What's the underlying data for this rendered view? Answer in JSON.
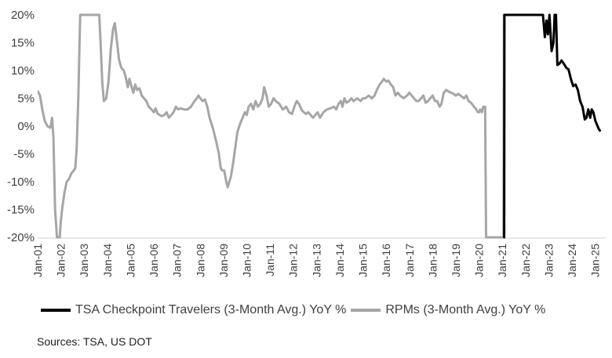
{
  "chart_data": {
    "type": "line",
    "title": "",
    "xlabel": "",
    "ylabel": "",
    "ylim": [
      -20,
      20
    ],
    "yticks": [
      -20,
      -15,
      -10,
      -5,
      0,
      5,
      10,
      15,
      20
    ],
    "ytick_labels": [
      "-20%",
      "-15%",
      "-10%",
      "-5%",
      "0%",
      "5%",
      "10%",
      "15%",
      "20%"
    ],
    "xlim": [
      2001.0,
      2025.45
    ],
    "xticks": [
      2001,
      2002,
      2003,
      2004,
      2005,
      2006,
      2007,
      2008,
      2009,
      2010,
      2011,
      2012,
      2013,
      2014,
      2015,
      2016,
      2017,
      2018,
      2019,
      2020,
      2021,
      2022,
      2023,
      2024,
      2025
    ],
    "xtick_labels": [
      "Jan-01",
      "Jan-02",
      "Jan-03",
      "Jan-04",
      "Jan-05",
      "Jan-06",
      "Jan-07",
      "Jan-08",
      "Jan-09",
      "Jan-10",
      "Jan-11",
      "Jan-12",
      "Jan-13",
      "Jan-14",
      "Jan-15",
      "Jan-16",
      "Jan-17",
      "Jan-18",
      "Jan-19",
      "Jan-20",
      "Jan-21",
      "Jan-22",
      "Jan-23",
      "Jan-24",
      "Jan-25"
    ],
    "grid": false,
    "legend_position": "bottom",
    "series": [
      {
        "name": "TSA Checkpoint Travelers (3-Month Avg.) YoY %",
        "color": "#000000",
        "points": [
          [
            2021.08,
            -20
          ],
          [
            2021.09,
            20
          ],
          [
            2022.75,
            20
          ],
          [
            2022.83,
            16
          ],
          [
            2022.9,
            19
          ],
          [
            2022.96,
            16.5
          ],
          [
            2023.03,
            20
          ],
          [
            2023.12,
            13.5
          ],
          [
            2023.2,
            15
          ],
          [
            2023.25,
            20
          ],
          [
            2023.31,
            20
          ],
          [
            2023.37,
            11
          ],
          [
            2023.45,
            11.2
          ],
          [
            2023.55,
            11.8
          ],
          [
            2023.65,
            11.2
          ],
          [
            2023.75,
            10.5
          ],
          [
            2023.85,
            10.2
          ],
          [
            2023.95,
            8.5
          ],
          [
            2024.05,
            7.2
          ],
          [
            2024.15,
            7.5
          ],
          [
            2024.25,
            6.5
          ],
          [
            2024.35,
            4.5
          ],
          [
            2024.45,
            3.5
          ],
          [
            2024.55,
            1.2
          ],
          [
            2024.62,
            1.5
          ],
          [
            2024.7,
            3
          ],
          [
            2024.78,
            1.5
          ],
          [
            2024.85,
            3
          ],
          [
            2024.92,
            2.5
          ],
          [
            2025.0,
            1
          ],
          [
            2025.08,
            0.2
          ],
          [
            2025.15,
            -0.5
          ],
          [
            2025.2,
            -0.8
          ]
        ]
      },
      {
        "name": "RPMs (3-Month Avg.) YoY %",
        "color": "#a6a6a6",
        "points": [
          [
            2001.0,
            6.3
          ],
          [
            2001.1,
            5.5
          ],
          [
            2001.2,
            3
          ],
          [
            2001.3,
            1
          ],
          [
            2001.42,
            0
          ],
          [
            2001.55,
            -0.3
          ],
          [
            2001.62,
            1.5
          ],
          [
            2001.68,
            -2
          ],
          [
            2001.75,
            -15
          ],
          [
            2001.83,
            -20
          ],
          [
            2001.95,
            -20
          ],
          [
            2002.0,
            -17
          ],
          [
            2002.05,
            -15
          ],
          [
            2002.15,
            -12
          ],
          [
            2002.25,
            -10
          ],
          [
            2002.35,
            -9.5
          ],
          [
            2002.45,
            -8.5
          ],
          [
            2002.55,
            -8
          ],
          [
            2002.62,
            -7.5
          ],
          [
            2002.68,
            -4
          ],
          [
            2002.75,
            5
          ],
          [
            2002.83,
            20
          ],
          [
            2003.65,
            20
          ],
          [
            2003.72,
            14
          ],
          [
            2003.78,
            8
          ],
          [
            2003.85,
            4.5
          ],
          [
            2003.95,
            5
          ],
          [
            2004.05,
            8
          ],
          [
            2004.15,
            14
          ],
          [
            2004.25,
            17.5
          ],
          [
            2004.32,
            18.5
          ],
          [
            2004.42,
            15
          ],
          [
            2004.5,
            12
          ],
          [
            2004.6,
            10.5
          ],
          [
            2004.7,
            10
          ],
          [
            2004.78,
            9
          ],
          [
            2004.88,
            7
          ],
          [
            2004.95,
            8.5
          ],
          [
            2005.05,
            7
          ],
          [
            2005.12,
            6
          ],
          [
            2005.2,
            7.5
          ],
          [
            2005.28,
            6.5
          ],
          [
            2005.38,
            6.8
          ],
          [
            2005.48,
            5.5
          ],
          [
            2005.58,
            5
          ],
          [
            2005.68,
            4.5
          ],
          [
            2005.78,
            3.5
          ],
          [
            2005.9,
            3
          ],
          [
            2006.0,
            2.5
          ],
          [
            2006.08,
            3.2
          ],
          [
            2006.15,
            2.3
          ],
          [
            2006.25,
            2
          ],
          [
            2006.35,
            1.8
          ],
          [
            2006.45,
            2
          ],
          [
            2006.55,
            2.5
          ],
          [
            2006.65,
            1.5
          ],
          [
            2006.75,
            2
          ],
          [
            2006.85,
            2.5
          ],
          [
            2006.95,
            3.5
          ],
          [
            2007.05,
            3
          ],
          [
            2007.15,
            3.2
          ],
          [
            2007.3,
            3
          ],
          [
            2007.45,
            3
          ],
          [
            2007.6,
            3.5
          ],
          [
            2007.75,
            4.5
          ],
          [
            2007.85,
            5
          ],
          [
            2007.92,
            5.5
          ],
          [
            2008.0,
            5
          ],
          [
            2008.1,
            4.5
          ],
          [
            2008.2,
            4.8
          ],
          [
            2008.3,
            3.5
          ],
          [
            2008.4,
            1.5
          ],
          [
            2008.55,
            -0.5
          ],
          [
            2008.7,
            -3
          ],
          [
            2008.8,
            -5
          ],
          [
            2008.88,
            -7.5
          ],
          [
            2008.95,
            -8
          ],
          [
            2009.03,
            -8
          ],
          [
            2009.12,
            -10
          ],
          [
            2009.18,
            -11
          ],
          [
            2009.25,
            -10
          ],
          [
            2009.32,
            -9
          ],
          [
            2009.42,
            -6.5
          ],
          [
            2009.5,
            -4
          ],
          [
            2009.6,
            -1
          ],
          [
            2009.72,
            0.5
          ],
          [
            2009.82,
            1.5
          ],
          [
            2009.92,
            2.5
          ],
          [
            2010.0,
            2
          ],
          [
            2010.08,
            3.5
          ],
          [
            2010.18,
            4
          ],
          [
            2010.28,
            3
          ],
          [
            2010.38,
            4.5
          ],
          [
            2010.48,
            3.5
          ],
          [
            2010.58,
            4
          ],
          [
            2010.68,
            5
          ],
          [
            2010.75,
            7
          ],
          [
            2010.85,
            5.5
          ],
          [
            2010.95,
            3.5
          ],
          [
            2011.05,
            4
          ],
          [
            2011.15,
            5
          ],
          [
            2011.25,
            4.5
          ],
          [
            2011.4,
            4
          ],
          [
            2011.55,
            3
          ],
          [
            2011.7,
            3.5
          ],
          [
            2011.82,
            2.5
          ],
          [
            2011.95,
            2.2
          ],
          [
            2012.05,
            3.5
          ],
          [
            2012.15,
            4.5
          ],
          [
            2012.25,
            4
          ],
          [
            2012.35,
            3
          ],
          [
            2012.45,
            2.5
          ],
          [
            2012.55,
            2.2
          ],
          [
            2012.65,
            2.5
          ],
          [
            2012.75,
            2
          ],
          [
            2012.85,
            1.5
          ],
          [
            2012.95,
            2
          ],
          [
            2013.05,
            2.5
          ],
          [
            2013.15,
            1.5
          ],
          [
            2013.3,
            2.5
          ],
          [
            2013.45,
            3
          ],
          [
            2013.6,
            3.2
          ],
          [
            2013.75,
            3.5
          ],
          [
            2013.85,
            3
          ],
          [
            2013.95,
            4
          ],
          [
            2014.05,
            4.5
          ],
          [
            2014.12,
            3.5
          ],
          [
            2014.2,
            5
          ],
          [
            2014.3,
            4.2
          ],
          [
            2014.4,
            4.5
          ],
          [
            2014.5,
            5
          ],
          [
            2014.6,
            4.5
          ],
          [
            2014.75,
            5
          ],
          [
            2014.9,
            4.5
          ],
          [
            2015.0,
            5
          ],
          [
            2015.1,
            5
          ],
          [
            2015.25,
            5.5
          ],
          [
            2015.38,
            5
          ],
          [
            2015.5,
            5.5
          ],
          [
            2015.6,
            6.5
          ],
          [
            2015.72,
            7.5
          ],
          [
            2015.82,
            8
          ],
          [
            2015.9,
            8.5
          ],
          [
            2016.0,
            8
          ],
          [
            2016.1,
            8.2
          ],
          [
            2016.2,
            7.5
          ],
          [
            2016.3,
            7
          ],
          [
            2016.4,
            5.5
          ],
          [
            2016.5,
            6
          ],
          [
            2016.6,
            5.5
          ],
          [
            2016.75,
            5
          ],
          [
            2016.9,
            5.5
          ],
          [
            2017.0,
            6
          ],
          [
            2017.1,
            5.5
          ],
          [
            2017.2,
            5
          ],
          [
            2017.3,
            4.5
          ],
          [
            2017.4,
            4.5
          ],
          [
            2017.5,
            5
          ],
          [
            2017.6,
            5.5
          ],
          [
            2017.7,
            4.2
          ],
          [
            2017.8,
            4.5
          ],
          [
            2017.9,
            5
          ],
          [
            2018.0,
            5.5
          ],
          [
            2018.1,
            4.5
          ],
          [
            2018.2,
            4.5
          ],
          [
            2018.3,
            3.5
          ],
          [
            2018.38,
            4
          ],
          [
            2018.48,
            6
          ],
          [
            2018.58,
            6.5
          ],
          [
            2018.7,
            6.2
          ],
          [
            2018.8,
            6
          ],
          [
            2018.9,
            5.8
          ],
          [
            2019.0,
            5.5
          ],
          [
            2019.1,
            5.8
          ],
          [
            2019.2,
            5.5
          ],
          [
            2019.35,
            5
          ],
          [
            2019.45,
            5.5
          ],
          [
            2019.55,
            4.5
          ],
          [
            2019.65,
            4.2
          ],
          [
            2019.78,
            3.5
          ],
          [
            2019.88,
            3
          ],
          [
            2019.95,
            2.5
          ],
          [
            2020.0,
            2.5
          ],
          [
            2020.05,
            3
          ],
          [
            2020.12,
            2.5
          ],
          [
            2020.18,
            3.5
          ],
          [
            2020.26,
            3.5
          ],
          [
            2020.3,
            -20
          ],
          [
            2021.05,
            -20
          ],
          [
            2021.07,
            20
          ]
        ]
      }
    ]
  },
  "legend": {
    "items": [
      {
        "label": "TSA Checkpoint Travelers (3-Month Avg.) YoY %",
        "color": "#000000"
      },
      {
        "label": "RPMs (3-Month Avg.) YoY %",
        "color": "#a6a6a6"
      }
    ]
  },
  "source": "Sources: TSA, US DOT"
}
